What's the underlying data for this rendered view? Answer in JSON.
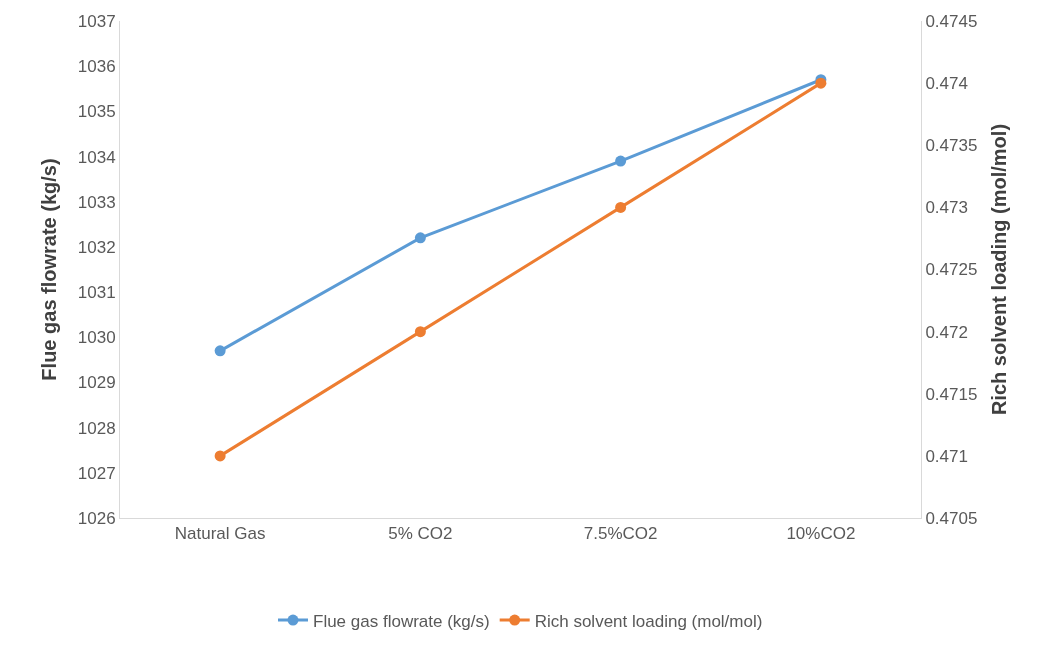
{
  "chart_data": {
    "type": "line",
    "ylabel": "Flue gas flowrate (kg/s)",
    "y2label": "Rich solvent loading (mol/mol)",
    "categories": [
      "Natural Gas",
      "5% CO2",
      "7.5%CO2",
      "10%CO2"
    ],
    "series": [
      {
        "name": "Flue gas flowrate (kg/s)",
        "color": "#5b9bd5",
        "values": [
          1029.7,
          1032.2,
          1033.9,
          1035.7
        ]
      },
      {
        "name": "Rich solvent loading (mol/mol)",
        "color": "#ed7d31",
        "values": [
          0.471,
          0.472,
          0.473,
          0.474
        ],
        "axis": "y2"
      }
    ],
    "ylim": [
      1026,
      1037
    ],
    "yticks": [
      1026,
      1027,
      1028,
      1029,
      1030,
      1031,
      1032,
      1033,
      1034,
      1035,
      1036,
      1037
    ],
    "y2lim": [
      0.4705,
      0.4745
    ],
    "y2ticks": [
      0.4705,
      0.471,
      0.4715,
      0.472,
      0.4725,
      0.473,
      0.4735,
      0.474,
      0.4745
    ],
    "legend": "bottom",
    "marker": "circle",
    "line_style": "solid"
  }
}
